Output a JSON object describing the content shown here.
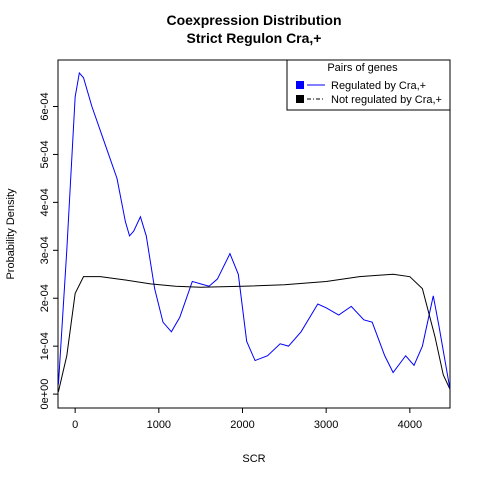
{
  "chart_data": {
    "type": "line",
    "title": "Coexpression Distribution",
    "subtitle": "Strict Regulon Cra,+",
    "x_label": "SCR",
    "y_label": "Probability Density",
    "xlim": [
      -205,
      4480
    ],
    "ylim": [
      -2.9e-05,
      0.000697
    ],
    "xticks": [
      0,
      1000,
      2000,
      3000,
      4000
    ],
    "yticks": [
      {
        "value": 0,
        "label": "0e+00"
      },
      {
        "value": 0.0001,
        "label": "1e-04"
      },
      {
        "value": 0.0002,
        "label": "2e-04"
      },
      {
        "value": 0.0003,
        "label": "3e-04"
      },
      {
        "value": 0.0004,
        "label": "4e-04"
      },
      {
        "value": 0.0005,
        "label": "5e-04"
      },
      {
        "value": 0.0006,
        "label": "6e-04"
      }
    ],
    "legend_title": "Pairs of genes",
    "legend": "top-right",
    "series": [
      {
        "name": "Regulated by  Cra,+",
        "color": "#0000ff",
        "x": [
          -200,
          -100,
          0,
          50,
          100,
          200,
          300,
          400,
          500,
          600,
          650,
          700,
          780,
          850,
          950,
          1050,
          1150,
          1250,
          1400,
          1500,
          1600,
          1700,
          1850,
          1950,
          2050,
          2150,
          2300,
          2450,
          2550,
          2700,
          2900,
          3000,
          3150,
          3300,
          3450,
          3550,
          3700,
          3800,
          3950,
          4050,
          4150,
          4280,
          4350,
          4480
        ],
        "values": [
          2e-05,
          0.0003,
          0.00062,
          0.00067,
          0.00066,
          0.0006,
          0.00055,
          0.0005,
          0.00045,
          0.00036,
          0.00033,
          0.00034,
          0.00037,
          0.00033,
          0.00022,
          0.00015,
          0.00013,
          0.00016,
          0.000235,
          0.00023,
          0.000225,
          0.00024,
          0.000293,
          0.00025,
          0.00011,
          7e-05,
          8e-05,
          0.000105,
          0.0001,
          0.00013,
          0.000188,
          0.00018,
          0.000165,
          0.000183,
          0.000155,
          0.00015,
          8e-05,
          4.5e-05,
          8e-05,
          6e-05,
          0.0001,
          0.000205,
          0.00014,
          1e-05
        ]
      },
      {
        "name": "Not regulated by  Cra,+",
        "color": "#000000",
        "x": [
          -200,
          -100,
          0,
          100,
          300,
          600,
          900,
          1200,
          1500,
          2000,
          2500,
          3000,
          3400,
          3800,
          4000,
          4150,
          4300,
          4400,
          4480
        ],
        "values": [
          5e-06,
          8e-05,
          0.00021,
          0.000245,
          0.000245,
          0.000238,
          0.00023,
          0.000225,
          0.000223,
          0.000225,
          0.000228,
          0.000235,
          0.000245,
          0.00025,
          0.000245,
          0.00022,
          0.00012,
          4e-05,
          1e-05
        ]
      }
    ]
  }
}
